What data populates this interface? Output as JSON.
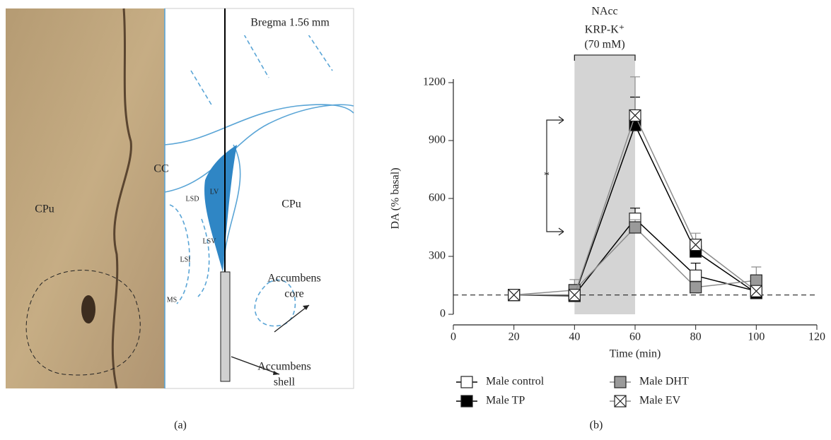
{
  "panel_a": {
    "bregma": "Bregma 1.56 mm",
    "labels": [
      "CC",
      "CPu",
      "LV",
      "LSD",
      "CPu",
      "LSV",
      "LSI",
      "MS"
    ],
    "core": [
      "Accumbens",
      "core"
    ],
    "shell": [
      "Accumbens",
      "shell"
    ],
    "caption": "(a)"
  },
  "panel_b_caption": "(b)",
  "chart_data": {
    "type": "line",
    "title": "NAcc",
    "stimulus": {
      "label": "KRP-K⁺",
      "sublabel": "(70 mM)",
      "span": [
        40,
        60
      ]
    },
    "annotation": "*",
    "reference_line": 100,
    "x_label": "Time (min)",
    "y_label": "DA (% basal)",
    "x": [
      20,
      40,
      60,
      80,
      100
    ],
    "xlim": [
      0,
      120
    ],
    "xticks": [
      0,
      20,
      40,
      60,
      80,
      100,
      120
    ],
    "ylim": [
      0,
      1200
    ],
    "yticks": [
      0,
      300,
      600,
      900,
      1200
    ],
    "series": [
      {
        "name": "Male control",
        "color": "#000000",
        "marker_fill": "#ffffff",
        "values": [
          100,
          100,
          495,
          200,
          120
        ],
        "errors": [
          10,
          10,
          55,
          65,
          20
        ]
      },
      {
        "name": "Male TP",
        "color": "#000000",
        "marker_fill": "#000000",
        "values": [
          100,
          95,
          980,
          325,
          110
        ],
        "errors": [
          10,
          10,
          145,
          40,
          15
        ]
      },
      {
        "name": "Male DHT",
        "color": "#8c8c8c",
        "marker_fill": "#9a9a9a",
        "values": [
          100,
          125,
          450,
          140,
          175
        ],
        "errors": [
          10,
          55,
          40,
          30,
          70
        ]
      },
      {
        "name": "Male EV",
        "color": "#8c8c8c",
        "marker_fill": "#ffffff",
        "marker": "x-square",
        "values": [
          100,
          100,
          1030,
          360,
          120
        ],
        "errors": [
          10,
          10,
          200,
          60,
          20
        ]
      }
    ]
  }
}
